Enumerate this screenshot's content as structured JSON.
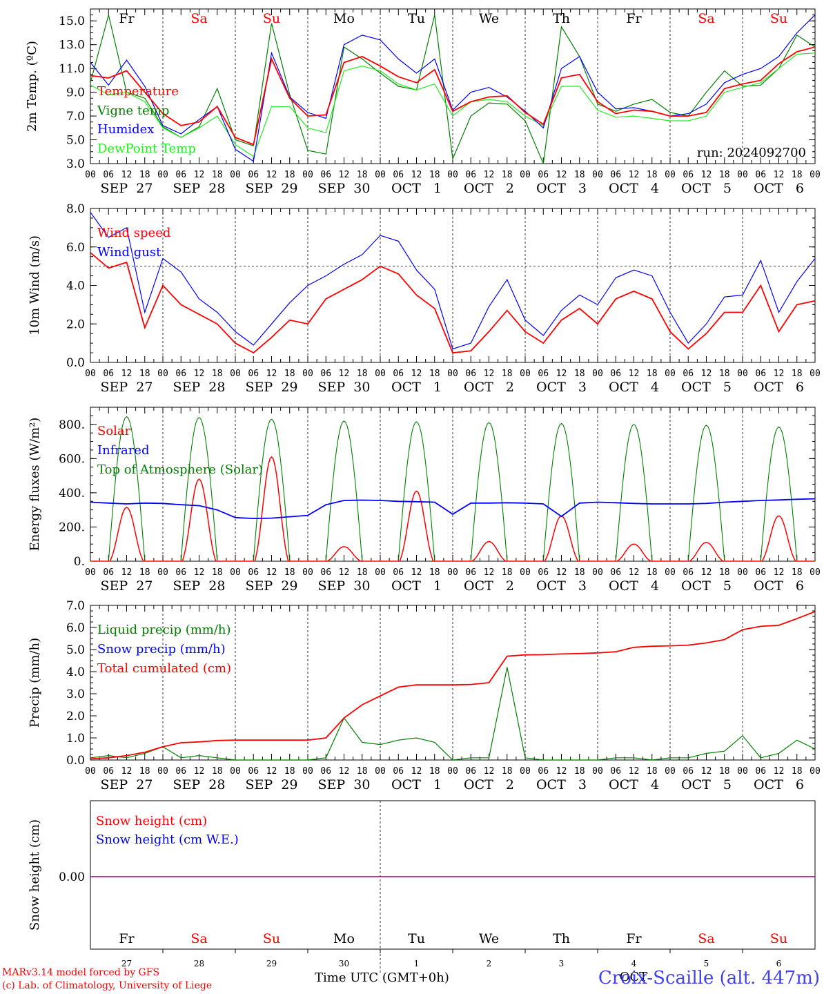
{
  "days": {
    "weekday_labels": [
      "Fr",
      "Sa",
      "Su",
      "Mo",
      "Tu",
      "We",
      "Th",
      "Fr",
      "Sa",
      "Su"
    ],
    "weekend_flags": [
      false,
      true,
      true,
      false,
      false,
      false,
      false,
      false,
      true,
      true
    ],
    "date_labels": [
      "SEP  27",
      "SEP  28",
      "SEP  29",
      "SEP  30",
      "OCT   1",
      "OCT   2",
      "OCT   3",
      "OCT   4",
      "OCT   5",
      "OCT   6"
    ],
    "day_numbers": [
      "27",
      "28",
      "29",
      "30",
      "1",
      "2",
      "3",
      "4",
      "5",
      "6"
    ],
    "hour_labels": [
      "00",
      "06",
      "12",
      "18"
    ],
    "final_hour": "00",
    "month_label": "OCT"
  },
  "colors": {
    "red": "#ff0000",
    "green": "#008000",
    "blue": "#0000ff",
    "lightgreen": "#22ee22",
    "weekend": "#ff0000"
  },
  "chart_data": [
    {
      "type": "line",
      "ylabel": "2m Temp. (ºC)",
      "ylim": [
        3.0,
        16.0
      ],
      "yticks": [
        "3.0",
        "5.0",
        "7.0",
        "9.0",
        "11.0",
        "13.0",
        "15.0"
      ],
      "ytick_values": [
        3,
        5,
        7,
        9,
        11,
        13,
        15
      ],
      "annotation": "run: 2024092700",
      "x_hours": [
        0,
        6,
        12,
        18,
        24,
        30,
        36,
        42,
        48,
        54,
        60,
        66,
        72,
        78,
        84,
        90,
        96,
        102,
        108,
        114,
        120,
        126,
        132,
        138,
        144,
        150,
        156,
        162,
        168,
        174,
        180,
        186,
        192,
        198,
        204,
        210,
        216,
        222,
        228,
        234,
        240
      ],
      "series": [
        {
          "name": "Temperature",
          "color": "red",
          "values": [
            10.4,
            10.2,
            10.8,
            9.0,
            7.2,
            6.2,
            6.5,
            7.8,
            5.2,
            4.6,
            11.8,
            8.5,
            7.0,
            7.1,
            11.5,
            12.0,
            11.2,
            10.3,
            9.8,
            10.9,
            7.4,
            8.2,
            8.6,
            8.7,
            7.3,
            6.3,
            10.2,
            10.5,
            8.2,
            7.2,
            7.5,
            7.4,
            7.0,
            7.0,
            7.3,
            9.3,
            9.7,
            10.0,
            11.4,
            12.4,
            12.8
          ]
        },
        {
          "name": "Vigne temp",
          "color": "green",
          "values": [
            9.8,
            15.5,
            9.0,
            8.5,
            6.1,
            5.2,
            6.1,
            9.3,
            5.0,
            4.5,
            14.8,
            8.8,
            4.1,
            3.8,
            12.8,
            11.8,
            10.6,
            9.5,
            9.2,
            15.5,
            3.4,
            7.0,
            8.1,
            8.0,
            6.6,
            3.0,
            14.5,
            12.0,
            8.0,
            7.4,
            8.0,
            8.4,
            7.3,
            7.0,
            9.0,
            10.8,
            9.5,
            9.6,
            11.0,
            13.8,
            12.8
          ]
        },
        {
          "name": "Humidex",
          "color": "blue",
          "values": [
            11.5,
            9.6,
            11.7,
            9.5,
            6.2,
            5.5,
            6.7,
            7.8,
            4.2,
            3.2,
            12.3,
            8.6,
            7.3,
            6.8,
            13.0,
            13.8,
            13.4,
            11.8,
            10.6,
            11.8,
            7.5,
            9.0,
            9.4,
            8.6,
            7.4,
            6.0,
            11.0,
            12.0,
            9.0,
            7.6,
            7.7,
            7.4,
            7.0,
            7.2,
            8.0,
            9.8,
            10.5,
            11.0,
            12.0,
            14.0,
            15.5
          ]
        },
        {
          "name": "DewPoint Temp",
          "color": "lightgreen",
          "values": [
            9.6,
            8.8,
            9.0,
            8.2,
            6.0,
            5.2,
            6.0,
            7.0,
            4.6,
            3.6,
            7.8,
            7.8,
            6.0,
            5.6,
            10.8,
            11.2,
            10.8,
            9.7,
            9.2,
            9.7,
            7.0,
            8.2,
            8.4,
            8.2,
            7.0,
            6.2,
            9.5,
            9.5,
            7.5,
            6.9,
            7.0,
            6.8,
            6.6,
            6.6,
            7.0,
            9.0,
            9.4,
            9.8,
            11.0,
            12.2,
            12.3
          ]
        }
      ]
    },
    {
      "type": "line",
      "ylabel": "10m Wind (m/s)",
      "ylim": [
        0.0,
        8.0
      ],
      "yticks": [
        "0.0",
        "2.0",
        "4.0",
        "6.0",
        "8.0"
      ],
      "ytick_values": [
        0,
        2,
        4,
        6,
        8
      ],
      "reference_line": 5.0,
      "x_hours": [
        0,
        6,
        12,
        18,
        24,
        30,
        36,
        42,
        48,
        54,
        60,
        66,
        72,
        78,
        84,
        90,
        96,
        102,
        108,
        114,
        120,
        126,
        132,
        138,
        144,
        150,
        156,
        162,
        168,
        174,
        180,
        186,
        192,
        198,
        204,
        210,
        216,
        222,
        228,
        234,
        240
      ],
      "series": [
        {
          "name": "Wind speed",
          "color": "red",
          "values": [
            5.7,
            4.9,
            5.2,
            1.8,
            4.0,
            3.0,
            2.5,
            2.0,
            1.0,
            0.5,
            1.3,
            2.2,
            2.0,
            3.3,
            3.8,
            4.3,
            5.0,
            4.6,
            3.5,
            2.8,
            0.5,
            0.6,
            1.6,
            2.7,
            1.6,
            1.0,
            2.2,
            2.8,
            2.0,
            3.3,
            3.7,
            3.3,
            1.6,
            0.7,
            1.5,
            2.6,
            2.6,
            4.0,
            1.6,
            3.0,
            3.2
          ]
        },
        {
          "name": "Wind gust",
          "color": "blue",
          "values": [
            7.8,
            6.5,
            7.0,
            2.6,
            5.4,
            4.7,
            3.3,
            2.6,
            1.6,
            0.9,
            2.0,
            3.1,
            4.0,
            4.5,
            5.1,
            5.6,
            6.6,
            6.3,
            4.8,
            3.8,
            0.7,
            1.0,
            2.9,
            4.3,
            2.2,
            1.4,
            2.7,
            3.5,
            3.0,
            4.4,
            4.8,
            4.5,
            2.6,
            1.0,
            2.0,
            3.4,
            3.5,
            5.3,
            2.6,
            4.2,
            5.4
          ]
        }
      ]
    },
    {
      "type": "line",
      "ylabel": "Energy fluxes (W/m²)",
      "ylim": [
        0,
        900
      ],
      "yticks": [
        "0.",
        "200.",
        "400.",
        "600.",
        "800."
      ],
      "ytick_values": [
        0,
        200,
        400,
        600,
        800
      ],
      "days_peaks": {
        "toa_solar": [
          845,
          840,
          830,
          820,
          815,
          810,
          805,
          800,
          795,
          785
        ],
        "solar": [
          315,
          480,
          610,
          85,
          410,
          115,
          265,
          100,
          110,
          265
        ]
      },
      "series": [
        {
          "name": "Solar",
          "color": "red"
        },
        {
          "name": "Infrared",
          "color": "blue",
          "x_hours": [
            0,
            6,
            12,
            18,
            24,
            30,
            36,
            42,
            48,
            54,
            60,
            66,
            72,
            78,
            84,
            90,
            96,
            102,
            108,
            114,
            120,
            126,
            132,
            138,
            144,
            150,
            156,
            162,
            168,
            174,
            180,
            186,
            192,
            198,
            204,
            210,
            216,
            222,
            228,
            234,
            240
          ],
          "values": [
            345,
            340,
            335,
            340,
            338,
            330,
            325,
            300,
            255,
            250,
            252,
            260,
            268,
            330,
            355,
            357,
            355,
            350,
            348,
            345,
            275,
            340,
            340,
            342,
            340,
            335,
            262,
            340,
            345,
            342,
            338,
            335,
            335,
            335,
            338,
            345,
            350,
            355,
            358,
            362,
            365
          ]
        },
        {
          "name": "Top of Atmosphere (Solar)",
          "color": "green"
        }
      ]
    },
    {
      "type": "line",
      "ylabel": "Precip (mm/h)",
      "ylim": [
        0.0,
        7.0
      ],
      "yticks": [
        "0.0",
        "1.0",
        "2.0",
        "3.0",
        "4.0",
        "5.0",
        "6.0",
        "7.0"
      ],
      "ytick_values": [
        0,
        1,
        2,
        3,
        4,
        5,
        6,
        7
      ],
      "x_hours": [
        0,
        6,
        12,
        18,
        24,
        30,
        36,
        42,
        48,
        54,
        60,
        66,
        72,
        78,
        84,
        90,
        96,
        102,
        108,
        114,
        120,
        126,
        132,
        138,
        144,
        150,
        156,
        162,
        168,
        174,
        180,
        186,
        192,
        198,
        204,
        210,
        216,
        222,
        228,
        234,
        240
      ],
      "series": [
        {
          "name": "Liquid precip (mm/h)",
          "color": "green",
          "values": [
            0.1,
            0.2,
            0.1,
            0.3,
            0.6,
            0.1,
            0.2,
            0.1,
            0.0,
            0.0,
            0.0,
            0.0,
            0.0,
            0.1,
            1.9,
            0.8,
            0.7,
            0.9,
            1.0,
            0.8,
            0.0,
            0.1,
            0.1,
            4.2,
            0.1,
            0.0,
            0.0,
            0.0,
            0.0,
            0.1,
            0.1,
            0.0,
            0.1,
            0.1,
            0.3,
            0.4,
            1.1,
            0.1,
            0.3,
            0.9,
            0.5
          ]
        },
        {
          "name": "Snow precip (mm/h)",
          "color": "blue"
        },
        {
          "name": "Total cumulated (cm)",
          "color": "red",
          "values": [
            0.05,
            0.1,
            0.2,
            0.35,
            0.6,
            0.78,
            0.82,
            0.88,
            0.9,
            0.9,
            0.9,
            0.9,
            0.9,
            1.0,
            1.9,
            2.5,
            2.9,
            3.3,
            3.4,
            3.4,
            3.4,
            3.42,
            3.5,
            4.7,
            4.76,
            4.77,
            4.8,
            4.82,
            4.85,
            4.9,
            5.1,
            5.15,
            5.17,
            5.2,
            5.3,
            5.45,
            5.9,
            6.05,
            6.1,
            6.4,
            6.72
          ]
        }
      ]
    },
    {
      "type": "line",
      "ylabel": "Snow height (cm)",
      "yticks": [
        "0.00"
      ],
      "series": [
        {
          "name": "Snow height (cm)",
          "color": "red",
          "values": [
            0,
            0
          ]
        },
        {
          "name": "Snow height (cm W.E.)",
          "color": "blue",
          "values": [
            0,
            0
          ]
        }
      ]
    }
  ],
  "x_axis_title": "Time UTC (GMT+0h)",
  "footer": {
    "model": "MARv3.14 model forced by GFS",
    "credit": "(c) Lab. of Climatology, University of Liege",
    "station": "Croix-Scaille (alt. 447m)"
  }
}
